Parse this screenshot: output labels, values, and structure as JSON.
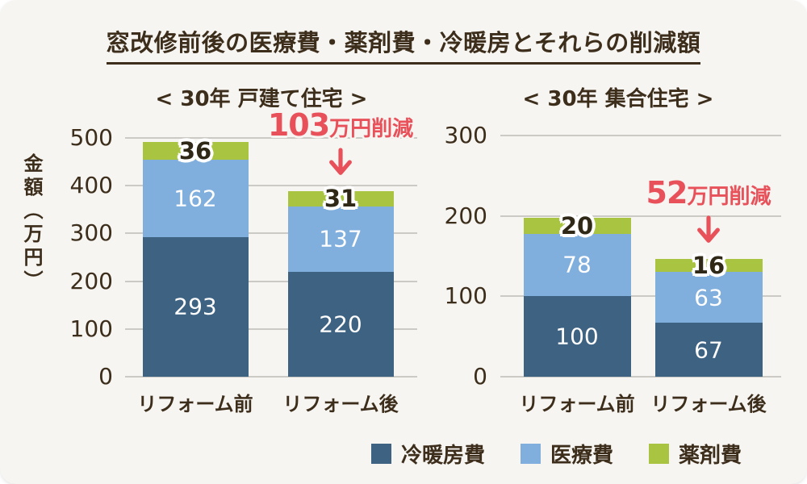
{
  "title": "窓改修前後の医療費・薬剤費・冷暖房とそれらの削減額",
  "y_axis_label": "金額（万円）",
  "colors": {
    "background": "#f6f5f2",
    "text_brown": "#3d2e1c",
    "accent_red": "#e8515a",
    "gridline": "#cbcac5",
    "heating_blue": "#3e6282",
    "medical_blue": "#80aedd",
    "pharmacy_green": "#a9c441",
    "bar_value_white": "#ffffff"
  },
  "legend": [
    {
      "label": "冷暖房費",
      "color": "#3e6282"
    },
    {
      "label": "医療費",
      "color": "#80aedd"
    },
    {
      "label": "薬剤費",
      "color": "#a9c441"
    }
  ],
  "chart_data": [
    {
      "type": "bar",
      "stacked": true,
      "title": "< 30年 戸建て住宅 >",
      "ylabel": "金額（万円）",
      "categories": [
        "リフォーム前",
        "リフォーム後"
      ],
      "series": [
        {
          "name": "冷暖房費",
          "color": "#3e6282",
          "values": [
            293,
            220
          ]
        },
        {
          "name": "医療費",
          "color": "#80aedd",
          "values": [
            162,
            137
          ]
        },
        {
          "name": "薬剤費",
          "color": "#a9c441",
          "values": [
            36,
            31
          ]
        }
      ],
      "ylim": [
        0,
        500
      ],
      "yticks": [
        0,
        100,
        200,
        300,
        400,
        500
      ],
      "grid": true,
      "legend_position": "bottom",
      "annotation": {
        "amount": "103",
        "unit_text": "万円削減",
        "full_text": "103万円削減",
        "target_category": 1
      }
    },
    {
      "type": "bar",
      "stacked": true,
      "title": "< 30年 集合住宅 >",
      "ylabel": "金額（万円）",
      "categories": [
        "リフォーム前",
        "リフォーム後"
      ],
      "series": [
        {
          "name": "冷暖房費",
          "color": "#3e6282",
          "values": [
            100,
            67
          ]
        },
        {
          "name": "医療費",
          "color": "#80aedd",
          "values": [
            78,
            63
          ]
        },
        {
          "name": "薬剤費",
          "color": "#a9c441",
          "values": [
            20,
            16
          ]
        }
      ],
      "ylim": [
        0,
        300
      ],
      "yticks": [
        0,
        100,
        200,
        300
      ],
      "grid": true,
      "legend_position": "bottom",
      "annotation": {
        "amount": "52",
        "unit_text": "万円削減",
        "full_text": "52万円削減",
        "target_category": 1
      }
    }
  ]
}
